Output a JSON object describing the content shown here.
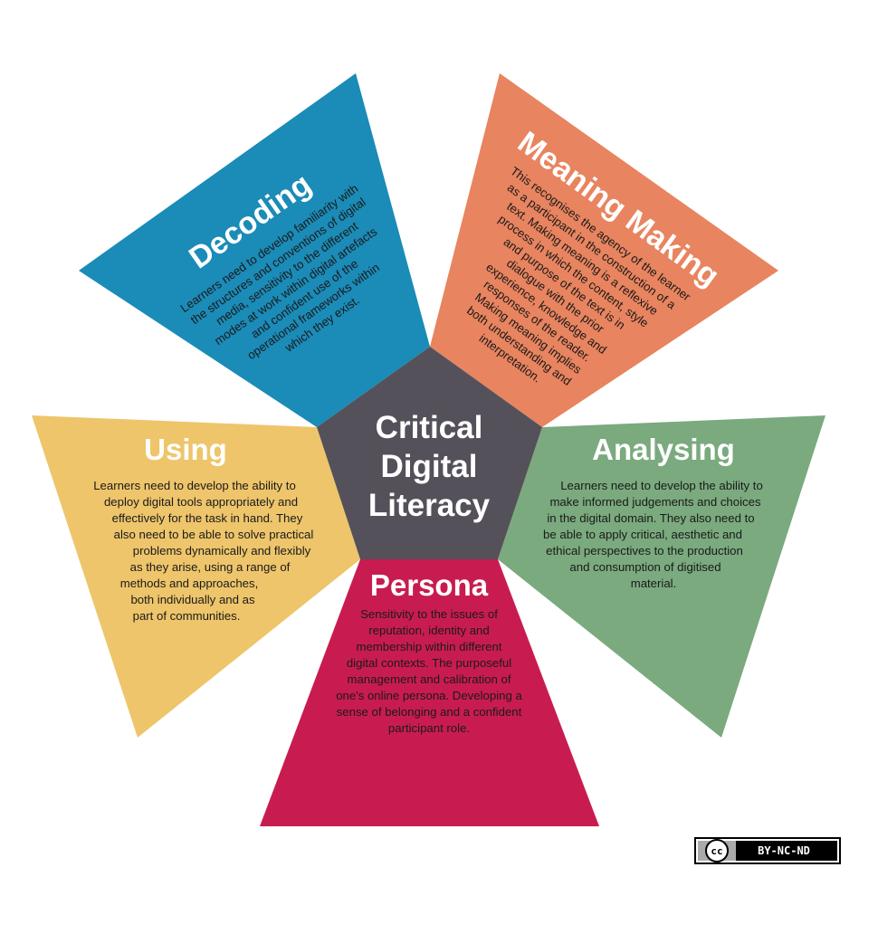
{
  "center": {
    "title_lines": [
      "Critical",
      "Digital",
      "Literacy"
    ],
    "color": "#54515a"
  },
  "segments": {
    "decoding": {
      "title": "Decoding",
      "color": "#1b8bb8",
      "body_lines": [
        "Learners need to develop familiarity with",
        "the structures and conventions of digital",
        "media, sensitivity to the different",
        "modes at work within digital artefacts",
        "and confident use of the",
        "operational frameworks within",
        "which they exist."
      ]
    },
    "meaning_making": {
      "title": "Meaning Making",
      "color": "#e8845f",
      "body_lines": [
        "This recognises the agency of the learner",
        "as a participant in the construction of a",
        "text. Making meaning is a reflexive",
        "process in which the content, style",
        "and purpose of the text is in",
        "dialogue with the prior",
        "experience, knowledge and",
        "responses of the reader.",
        "Making meaning implies",
        "both understanding and",
        "interpretation."
      ]
    },
    "analysing": {
      "title": "Analysing",
      "color": "#7aaa7e",
      "body_lines": [
        "Learners need to develop the ability to",
        "make informed judgements and choices",
        "in the digital domain. They also need to",
        "be able to apply critical, aesthetic and",
        "ethical perspectives to the production",
        "and consumption of digitised",
        "material."
      ]
    },
    "persona": {
      "title": "Persona",
      "color": "#c81c50",
      "body_lines": [
        "Sensitivity to the issues of",
        "reputation, identity and",
        "membership within different",
        "digital contexts. The purposeful",
        "management and calibration of",
        "one's online persona. Developing a",
        "sense of belonging and a confident",
        "participant role."
      ]
    },
    "using": {
      "title": "Using",
      "color": "#eec56b",
      "body_lines": [
        "Learners need to develop the ability to",
        "deploy digital tools appropriately and",
        "effectively for the task in hand. They",
        "also need to be able to solve practical",
        "problems dynamically and flexibly",
        "as they arise, using a range of",
        "methods and approaches,",
        "both individually and as",
        "part of communities."
      ]
    }
  },
  "license": {
    "cc_symbol": "cc",
    "text": "BY-NC-ND"
  }
}
